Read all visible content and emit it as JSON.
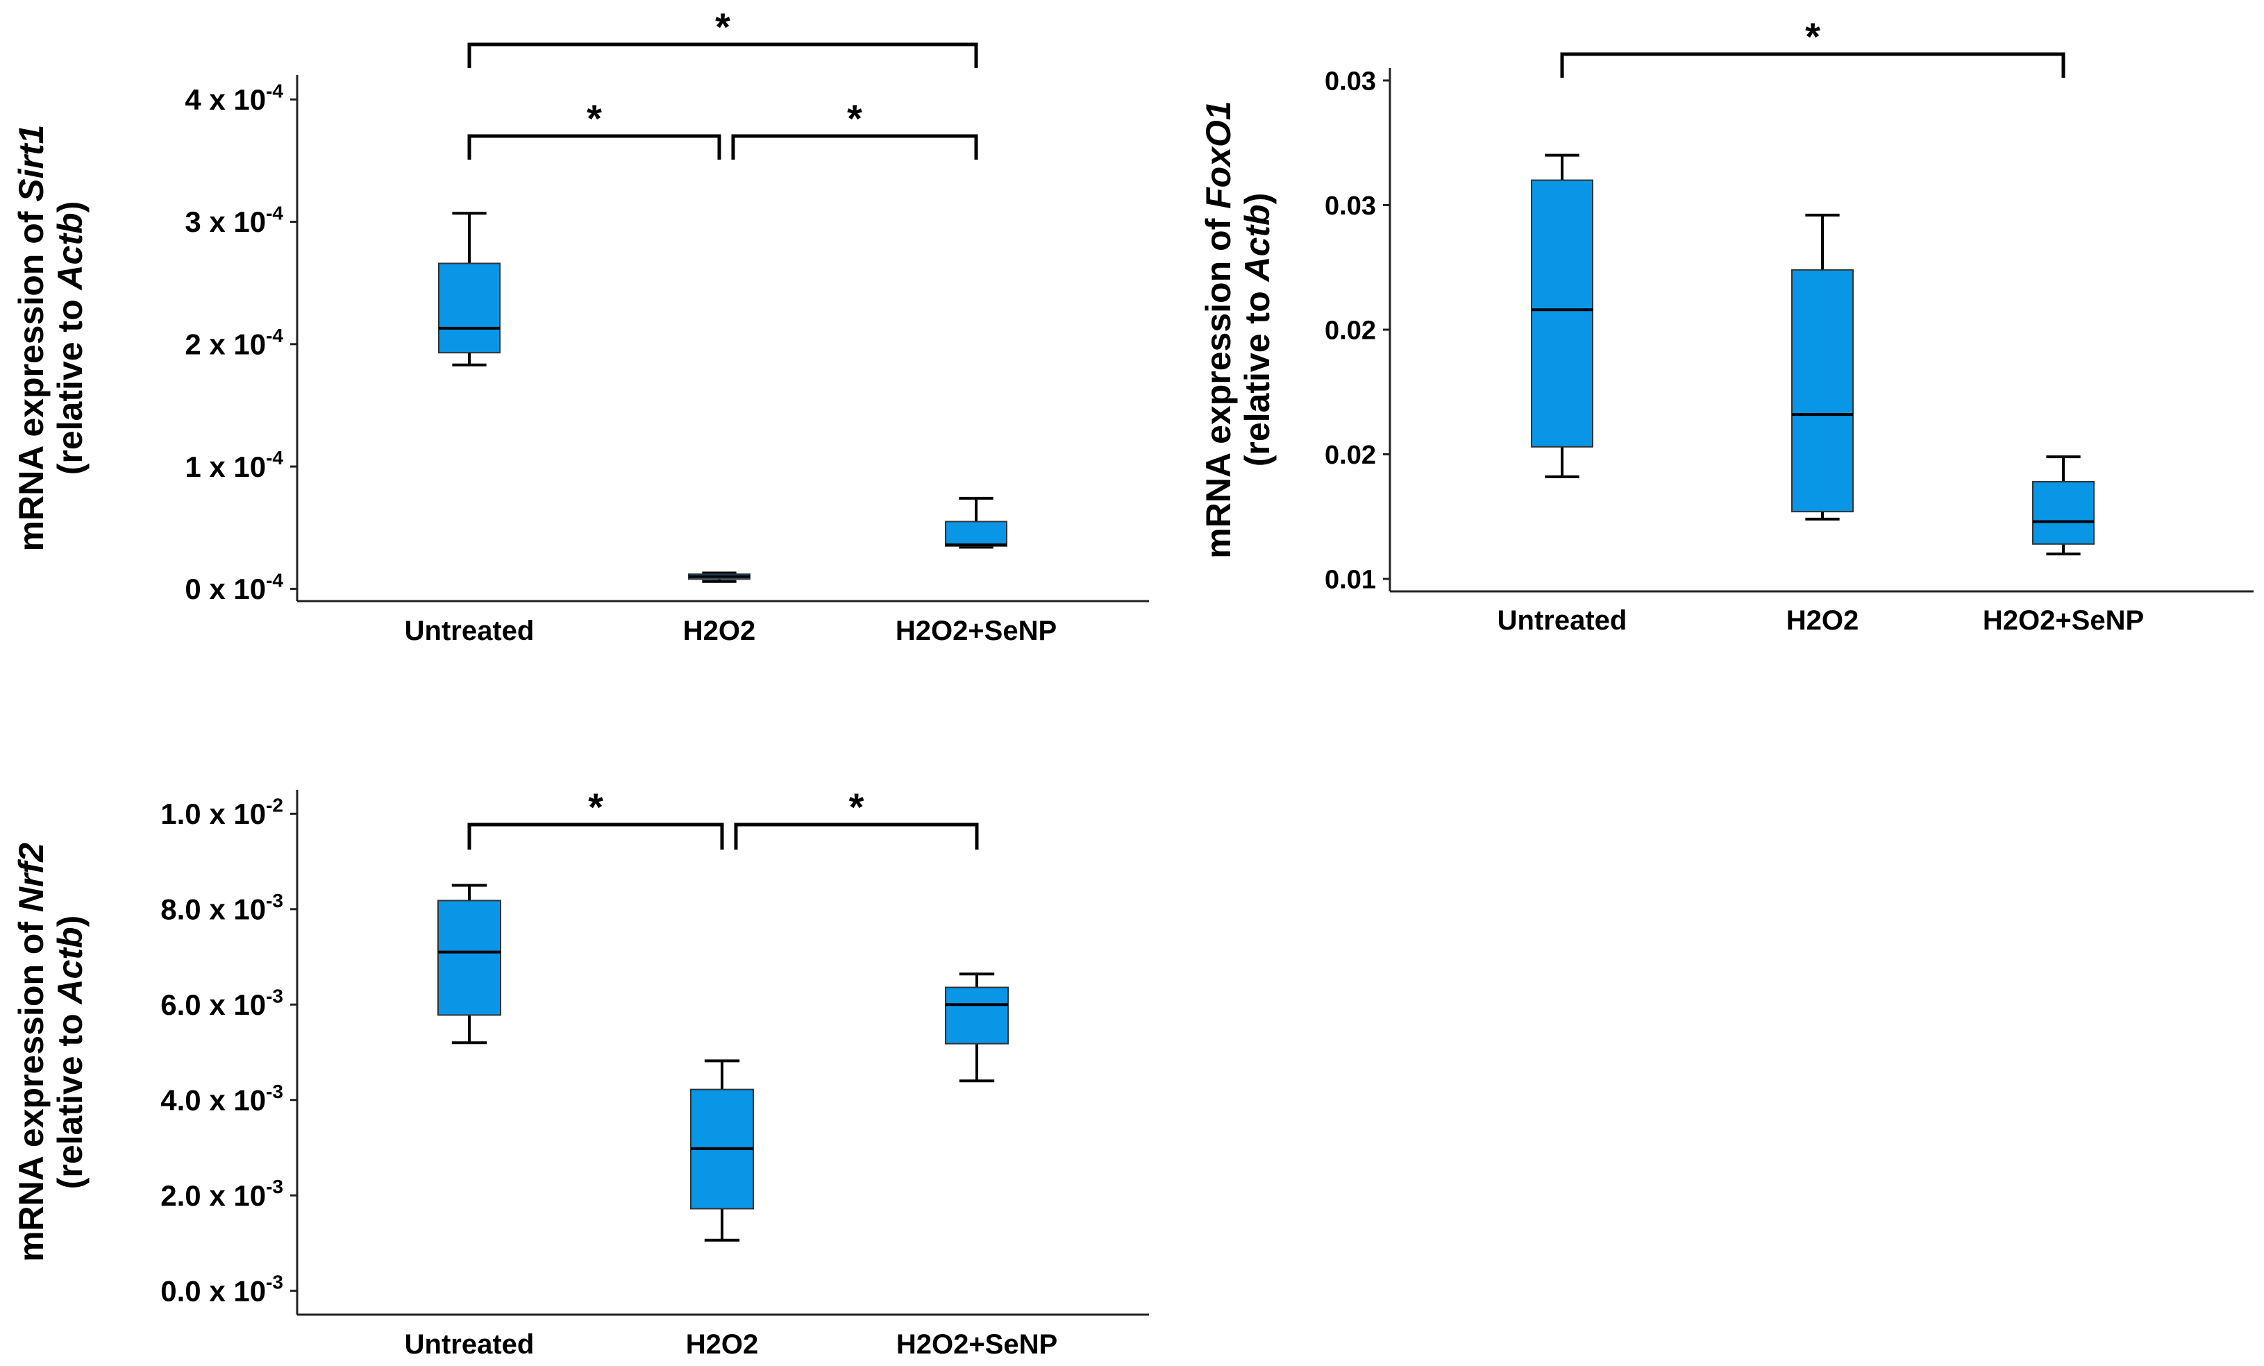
{
  "figure": {
    "box_color": "#0a96e6",
    "line_color": "#000000"
  },
  "chart_data": [
    {
      "id": "sirt1",
      "type": "boxplot",
      "gene": "Sirt1",
      "ylabel_prefix": "mRNA expression of ",
      "ylabel_line2_prefix": "(relative to ",
      "ylabel_ref": "Actb",
      "ylabel_line2_suffix": ")",
      "ylim": [
        -0.1,
        4.2
      ],
      "tick_values": [
        0,
        1,
        2,
        3,
        4
      ],
      "tick_mantissas": [
        "0",
        "1",
        "2",
        "3",
        "4"
      ],
      "tick_base": " x 10",
      "tick_exponents": [
        "-4",
        "-4",
        "-4",
        "-4",
        "-4"
      ],
      "categories": [
        "Untreated",
        "H2O2",
        "H2O2+SeNP"
      ],
      "boxes": [
        {
          "min": 1.83,
          "q1": 1.93,
          "median": 2.13,
          "q3": 2.66,
          "max": 3.07
        },
        {
          "min": 0.06,
          "q1": 0.08,
          "median": 0.1,
          "q3": 0.12,
          "max": 0.13
        },
        {
          "min": 0.34,
          "q1": 0.35,
          "median": 0.36,
          "q3": 0.55,
          "max": 0.74
        }
      ],
      "significance": [
        {
          "from": 0,
          "to": 2,
          "label": "*",
          "level": 0.0
        },
        {
          "from": 0,
          "to": 1,
          "label": "*",
          "level": 0.76
        },
        {
          "from": 1,
          "to": 2,
          "label": "*",
          "level": 0.76
        }
      ]
    },
    {
      "id": "foxo1",
      "type": "boxplot",
      "gene": "FoxO1",
      "ylabel_prefix": "mRNA expression of ",
      "ylabel_line2_prefix": "(relative to ",
      "ylabel_ref": "Actb",
      "ylabel_line2_suffix": ")",
      "ylim": [
        0.0095,
        0.0305
      ],
      "tick_values": [
        0.01,
        0.015,
        0.02,
        0.025,
        0.03
      ],
      "tick_labels": [
        "0.01",
        "0.02",
        "0.02",
        "0.03",
        "0.03"
      ],
      "categories": [
        "Untreated",
        "H2O2",
        "H2O2+SeNP"
      ],
      "boxes": [
        {
          "min": 0.0141,
          "q1": 0.0153,
          "median": 0.0208,
          "q3": 0.026,
          "max": 0.027
        },
        {
          "min": 0.0124,
          "q1": 0.0127,
          "median": 0.0166,
          "q3": 0.0224,
          "max": 0.0246
        },
        {
          "min": 0.011,
          "q1": 0.0114,
          "median": 0.0123,
          "q3": 0.0139,
          "max": 0.0149
        }
      ],
      "significance": [
        {
          "from": 0,
          "to": 2,
          "label": "*",
          "level": 0.0
        }
      ]
    },
    {
      "id": "nrf2",
      "type": "boxplot",
      "gene": "Nrf2",
      "ylabel_prefix": "mRNA expression of ",
      "ylabel_line2_prefix": "(relative to ",
      "ylabel_ref": "Actb",
      "ylabel_line2_suffix": ")",
      "ylim": [
        -0.5,
        10.5
      ],
      "tick_values": [
        0,
        2,
        4,
        6,
        8,
        10
      ],
      "tick_mantissas": [
        "0.0",
        "2.0",
        "4.0",
        "6.0",
        "8.0",
        "1.0"
      ],
      "tick_base": " x 10",
      "tick_exponents": [
        "-3",
        "-3",
        "-3",
        "-3",
        "-3",
        "-2"
      ],
      "categories": [
        "Untreated",
        "H2O2",
        "H2O2+SeNP"
      ],
      "boxes": [
        {
          "min": 5.2,
          "q1": 5.78,
          "median": 7.1,
          "q3": 8.18,
          "max": 8.5
        },
        {
          "min": 1.06,
          "q1": 1.72,
          "median": 2.98,
          "q3": 4.22,
          "max": 4.82
        },
        {
          "min": 4.4,
          "q1": 5.18,
          "median": 6.0,
          "q3": 6.36,
          "max": 6.64
        }
      ],
      "significance": [
        {
          "from": 0,
          "to": 1,
          "label": "*",
          "level": 0.0
        },
        {
          "from": 1,
          "to": 2,
          "label": "*",
          "level": 0.0
        }
      ]
    }
  ]
}
